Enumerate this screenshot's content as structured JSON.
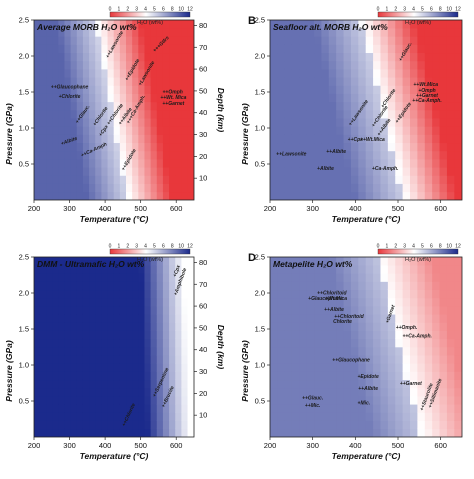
{
  "figure": {
    "panels": [
      {
        "letter": "",
        "title": "Average MORB H₂O wt%",
        "colorbar_label": "H₂O (wt%)",
        "colorbar_ticks": [
          "0",
          "1",
          "2",
          "3",
          "4",
          "5",
          "6",
          "8",
          "10",
          "12"
        ],
        "ylabel": "Pressure (GPa)",
        "xlabel": "Temperature (°C)",
        "right_label": "Depth (km)",
        "labels": [
          {
            "text": "++Glaucophane",
            "tx": 300,
            "ty": 1.55,
            "rot": 0
          },
          {
            "text": "+Chlorite",
            "tx": 300,
            "ty": 1.42,
            "rot": 0
          },
          {
            "text": "++Glauc.",
            "tx": 340,
            "ty": 1.18,
            "rot": -55
          },
          {
            "text": "+Chlorite",
            "tx": 390,
            "ty": 1.15,
            "rot": -55
          },
          {
            "text": "+Cpx ++Chlorite",
            "tx": 420,
            "ty": 1.1,
            "rot": -55
          },
          {
            "text": "++Albite",
            "tx": 460,
            "ty": 1.15,
            "rot": -55
          },
          {
            "text": "+Albite",
            "tx": 300,
            "ty": 0.8,
            "rot": -20
          },
          {
            "text": "++Ca-Amph",
            "tx": 370,
            "ty": 0.68,
            "rot": -25
          },
          {
            "text": "++Lawsonite",
            "tx": 430,
            "ty": 2.15,
            "rot": -60
          },
          {
            "text": "++Epidote",
            "tx": 480,
            "ty": 1.8,
            "rot": -60
          },
          {
            "text": "+Lawsonite",
            "tx": 520,
            "ty": 1.75,
            "rot": -60
          },
          {
            "text": "+++Ca-Amph.",
            "tx": 490,
            "ty": 1.25,
            "rot": -60
          },
          {
            "text": "++Omph",
            "tx": 590,
            "ty": 1.48,
            "rot": 0
          },
          {
            "text": "++Wt. Mica",
            "tx": 592,
            "ty": 1.4,
            "rot": 0
          },
          {
            "text": "++Garnet",
            "tx": 592,
            "ty": 1.32,
            "rot": 0
          },
          {
            "text": "+++Gtlrs",
            "tx": 560,
            "ty": 2.15,
            "rot": -45
          },
          {
            "text": "++Epidote",
            "tx": 470,
            "ty": 0.55,
            "rot": -60
          }
        ]
      },
      {
        "letter": "B",
        "title": "Seafloor alt. MORB H₂O wt%",
        "colorbar_label": "H₂O (wt%)",
        "colorbar_ticks": [
          "0",
          "1",
          "2",
          "3",
          "4",
          "5",
          "6",
          "8",
          "10",
          "12"
        ],
        "ylabel": "Pressure (GPa)",
        "xlabel": "Temperature (°C)",
        "right_label": "",
        "labels": [
          {
            "text": "++Glauc.",
            "tx": 520,
            "ty": 2.05,
            "rot": -60
          },
          {
            "text": "++Wt.Mica",
            "tx": 565,
            "ty": 1.58,
            "rot": 0
          },
          {
            "text": "+Omph",
            "tx": 568,
            "ty": 1.5,
            "rot": 0
          },
          {
            "text": "++Garnet",
            "tx": 568,
            "ty": 1.43,
            "rot": 0
          },
          {
            "text": "++Ca-Amph.",
            "tx": 568,
            "ty": 1.36,
            "rot": 0
          },
          {
            "text": "++Lawsonite",
            "tx": 250,
            "ty": 0.62,
            "rot": 0
          },
          {
            "text": "++Albite",
            "tx": 355,
            "ty": 0.65,
            "rot": 0
          },
          {
            "text": "++Wt.Mica",
            "tx": 440,
            "ty": 0.82,
            "rot": 0
          },
          {
            "text": "++Cpx",
            "tx": 400,
            "ty": 0.82,
            "rot": 0
          },
          {
            "text": "+Albite",
            "tx": 330,
            "ty": 0.42,
            "rot": 0
          },
          {
            "text": "+Ca-Amph.",
            "tx": 470,
            "ty": 0.42,
            "rot": 0
          },
          {
            "text": "++Lawsonite",
            "tx": 410,
            "ty": 1.2,
            "rot": -55
          },
          {
            "text": "++Chlorite",
            "tx": 460,
            "ty": 1.15,
            "rot": -55
          },
          {
            "text": "++Albite",
            "tx": 470,
            "ty": 1.0,
            "rot": -55
          },
          {
            "text": "+Chlorite",
            "tx": 480,
            "ty": 1.4,
            "rot": -55
          },
          {
            "text": "++Epidote",
            "tx": 515,
            "ty": 1.2,
            "rot": -55
          }
        ]
      },
      {
        "letter": "",
        "title": "DMM - Ultramafic H₂O wt%",
        "colorbar_label": "H₂O (wt%)",
        "colorbar_ticks": [
          "0",
          "1",
          "2",
          "3",
          "4",
          "5",
          "6",
          "8",
          "10",
          "12"
        ],
        "ylabel": "Pressure (GPa)",
        "xlabel": "Temperature (°C)",
        "right_label": "Depth (km)",
        "labels": [
          {
            "text": "++Serpentine",
            "tx": 560,
            "ty": 0.75,
            "rot": -65
          },
          {
            "text": "++Brucite",
            "tx": 580,
            "ty": 0.55,
            "rot": -65
          },
          {
            "text": "++Chlorite",
            "tx": 470,
            "ty": 0.3,
            "rot": -65
          },
          {
            "text": "+Cpx",
            "tx": 605,
            "ty": 2.3,
            "rot": -70
          },
          {
            "text": "+Amphibole",
            "tx": 615,
            "ty": 2.15,
            "rot": -70
          }
        ]
      },
      {
        "letter": "D",
        "title": "Metapelite H₂O wt%",
        "colorbar_label": "H₂O (wt%)",
        "colorbar_ticks": [
          "0",
          "1",
          "2",
          "3",
          "4",
          "5",
          "6",
          "8",
          "10",
          "12"
        ],
        "ylabel": "Pressure (GPa)",
        "xlabel": "Temperature (°C)",
        "right_label": "",
        "labels": [
          {
            "text": "++Chloritoid",
            "tx": 345,
            "ty": 1.98,
            "rot": 0
          },
          {
            "text": "+Glaucophane",
            "tx": 330,
            "ty": 1.9,
            "rot": 0
          },
          {
            "text": "+Wt.Mica",
            "tx": 355,
            "ty": 1.9,
            "rot": 0
          },
          {
            "text": "++Albite",
            "tx": 350,
            "ty": 1.75,
            "rot": 0
          },
          {
            "text": "++Chloritoid",
            "tx": 385,
            "ty": 1.65,
            "rot": 0
          },
          {
            "text": "Chlorite",
            "tx": 370,
            "ty": 1.58,
            "rot": 0
          },
          {
            "text": "++Glaucophane",
            "tx": 390,
            "ty": 1.05,
            "rot": 0
          },
          {
            "text": "+Epidote",
            "tx": 430,
            "ty": 0.82,
            "rot": 0
          },
          {
            "text": "++Albite",
            "tx": 430,
            "ty": 0.65,
            "rot": 0
          },
          {
            "text": "++Garnet",
            "tx": 530,
            "ty": 0.72,
            "rot": 0
          },
          {
            "text": "++Glauc.",
            "tx": 300,
            "ty": 0.52,
            "rot": 0
          },
          {
            "text": "++Mic.",
            "tx": 300,
            "ty": 0.42,
            "rot": 0
          },
          {
            "text": "+Mic.",
            "tx": 420,
            "ty": 0.45,
            "rot": 0
          },
          {
            "text": "++Ca-Amph.",
            "tx": 545,
            "ty": 1.38,
            "rot": 0
          },
          {
            "text": "++Omph.",
            "tx": 520,
            "ty": 1.5,
            "rot": 0
          },
          {
            "text": "+Garnet",
            "tx": 485,
            "ty": 1.7,
            "rot": -70
          },
          {
            "text": "++Sillimanite",
            "tx": 590,
            "ty": 0.6,
            "rot": -70
          },
          {
            "text": "++Staurolite",
            "tx": 570,
            "ty": 0.55,
            "rot": -70
          }
        ]
      }
    ]
  },
  "chart_data": [
    {
      "type": "heatmap",
      "title": "Average MORB H₂O wt%",
      "xlabel": "Temperature (°C)",
      "ylabel": "Pressure (GPa)",
      "right_axis_label": "Depth (km)",
      "xlim": [
        200,
        650
      ],
      "ylim": [
        0,
        2.5
      ],
      "x_ticks": [
        200,
        300,
        400,
        500,
        600
      ],
      "y_ticks": [
        0.5,
        1.0,
        1.5,
        2.0,
        2.5
      ],
      "right_ticks": [
        10,
        20,
        30,
        40,
        50,
        60,
        70,
        80
      ],
      "colorscale": {
        "label": "H₂O (wt%)",
        "min": 0,
        "max": 12,
        "low_color": "#e8373b",
        "mid_color": "#ffffff",
        "high_color": "#1b2a8c"
      },
      "field": {
        "boundary_T_at_P0": 470,
        "boundary_T_at_Ptop": 380,
        "blue_weight_low": 0.55,
        "red_weight_high": 1.0
      }
    },
    {
      "type": "heatmap",
      "title": "Seafloor alt. MORB H₂O wt%",
      "xlabel": "Temperature (°C)",
      "ylabel": "Pressure (GPa)",
      "xlim": [
        200,
        650
      ],
      "ylim": [
        0,
        2.5
      ],
      "x_ticks": [
        200,
        300,
        400,
        500,
        600
      ],
      "y_ticks": [
        0.5,
        1.0,
        1.5,
        2.0,
        2.5
      ],
      "colorscale": {
        "label": "H₂O (wt%)",
        "min": 0,
        "max": 12,
        "low_color": "#e8373b",
        "mid_color": "#ffffff",
        "high_color": "#1b2a8c"
      },
      "field": {
        "boundary_T_at_P0": 520,
        "boundary_T_at_Ptop": 420,
        "blue_weight_low": 0.45,
        "red_weight_high": 1.0
      }
    },
    {
      "type": "heatmap",
      "title": "DMM - Ultramafic H₂O wt%",
      "xlabel": "Temperature (°C)",
      "ylabel": "Pressure (GPa)",
      "right_axis_label": "Depth (km)",
      "xlim": [
        200,
        650
      ],
      "ylim": [
        0,
        2.5
      ],
      "x_ticks": [
        200,
        300,
        400,
        500,
        600
      ],
      "y_ticks": [
        0.5,
        1.0,
        1.5,
        2.0,
        2.5
      ],
      "right_ticks": [
        10,
        20,
        30,
        40,
        50,
        60,
        70,
        80
      ],
      "colorscale": {
        "label": "H₂O (wt%)",
        "min": 0,
        "max": 12,
        "low_color": "#e8373b",
        "mid_color": "#ffffff",
        "high_color": "#1b2a8c"
      },
      "field": {
        "boundary_T_at_P0": 640,
        "boundary_T_at_Ptop": 620,
        "blue_weight_low": 1.0,
        "red_weight_high": 0.0
      }
    },
    {
      "type": "heatmap",
      "title": "Metapelite H₂O wt%",
      "xlabel": "Temperature (°C)",
      "ylabel": "Pressure (GPa)",
      "xlim": [
        200,
        650
      ],
      "ylim": [
        0,
        2.5
      ],
      "x_ticks": [
        200,
        300,
        400,
        500,
        600
      ],
      "y_ticks": [
        0.5,
        1.0,
        1.5,
        2.0,
        2.5
      ],
      "colorscale": {
        "label": "H₂O (wt%)",
        "min": 0,
        "max": 12,
        "low_color": "#e8373b",
        "mid_color": "#ffffff",
        "high_color": "#1b2a8c"
      },
      "field": {
        "boundary_T_at_P0": 560,
        "boundary_T_at_Ptop": 460,
        "blue_weight_low": 0.35,
        "red_weight_high": 0.6
      }
    }
  ]
}
